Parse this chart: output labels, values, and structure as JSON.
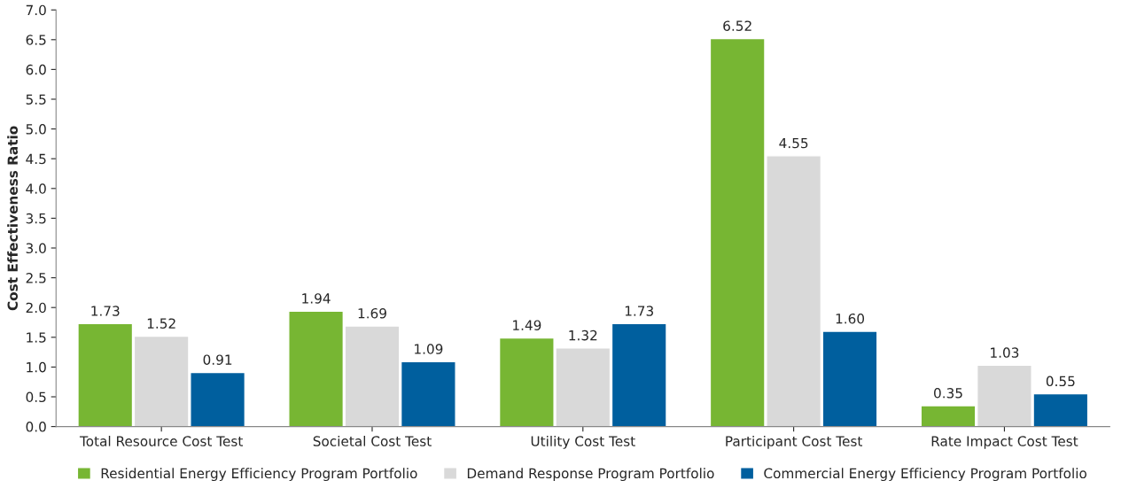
{
  "chart_data": {
    "type": "bar",
    "ylabel": "Cost Effectiveness Ratio",
    "categories": [
      "Total Resource Cost Test",
      "Societal Cost Test",
      "Utility Cost Test",
      "Participant Cost Test",
      "Rate Impact Cost Test"
    ],
    "series": [
      {
        "name": "Residential Energy Efficiency Program Portfolio",
        "color": "#77b633",
        "values": [
          1.73,
          1.94,
          1.49,
          6.52,
          0.35
        ],
        "value_labels": [
          "1.73",
          "1.94",
          "1.49",
          "6.52",
          "0.35"
        ]
      },
      {
        "name": "Demand Response Program Portfolio",
        "color": "#d9d9d9",
        "values": [
          1.52,
          1.69,
          1.32,
          4.55,
          1.03
        ],
        "value_labels": [
          "1.52",
          "1.69",
          "1.32",
          "4.55",
          "1.03"
        ]
      },
      {
        "name": "Commercial Energy Efficiency Program Portfolio",
        "color": "#005f9e",
        "values": [
          0.91,
          1.09,
          1.73,
          1.6,
          0.55
        ],
        "value_labels": [
          "0.91",
          "1.09",
          "1.73",
          "1.60",
          "0.55"
        ]
      }
    ],
    "ylim": [
      0,
      7
    ],
    "yticks": [
      {
        "value": 0,
        "label": "0.0"
      },
      0.5,
      {
        "value": 1,
        "label": "1.0"
      },
      1.5,
      {
        "value": 2,
        "label": "2.0"
      },
      2.5,
      {
        "value": 3,
        "label": "3.0"
      },
      3.5,
      {
        "value": 4,
        "label": "4.0"
      },
      4.5,
      {
        "value": 5,
        "label": "5.0"
      },
      5.5,
      {
        "value": 6,
        "label": "6.0"
      },
      6.5,
      {
        "value": 7,
        "label": "7.0"
      }
    ],
    "grid": false,
    "legend": "bottom"
  }
}
